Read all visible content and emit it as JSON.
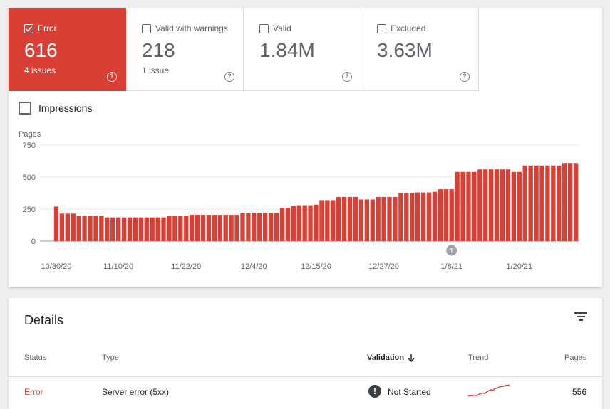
{
  "summary": {
    "tiles": [
      {
        "label": "Error",
        "value": "616",
        "sub": "4 issues",
        "checked": true
      },
      {
        "label": "Valid with warnings",
        "value": "218",
        "sub": "1 issue",
        "checked": false
      },
      {
        "label": "Valid",
        "value": "1.84M",
        "sub": "",
        "checked": false
      },
      {
        "label": "Excluded",
        "value": "3.63M",
        "sub": "",
        "checked": false
      }
    ],
    "help_glyph": "?"
  },
  "impressions": {
    "label": "Impressions",
    "checked": false
  },
  "chart_data": {
    "type": "bar",
    "ylabel": "Pages",
    "ylim": [
      0,
      750
    ],
    "yticks": [
      0,
      250,
      500,
      750
    ],
    "color": "#d93f34",
    "xtick_labels": [
      "10/30/20",
      "11/10/20",
      "11/22/20",
      "12/4/20",
      "12/15/20",
      "12/27/20",
      "1/8/21",
      "1/20/21"
    ],
    "xtick_indices": [
      0,
      11,
      23,
      35,
      46,
      58,
      70,
      82
    ],
    "annotation": {
      "label": "1",
      "index": 70
    },
    "values": [
      270,
      215,
      215,
      215,
      200,
      200,
      200,
      200,
      200,
      185,
      185,
      185,
      185,
      185,
      185,
      185,
      185,
      185,
      185,
      185,
      195,
      195,
      195,
      195,
      205,
      205,
      205,
      205,
      205,
      205,
      205,
      205,
      205,
      220,
      220,
      220,
      220,
      220,
      220,
      220,
      260,
      260,
      275,
      280,
      280,
      280,
      285,
      320,
      320,
      320,
      345,
      345,
      345,
      345,
      325,
      325,
      325,
      345,
      345,
      345,
      345,
      375,
      375,
      375,
      380,
      380,
      380,
      385,
      405,
      405,
      405,
      540,
      540,
      540,
      540,
      560,
      560,
      560,
      560,
      560,
      560,
      540,
      540,
      590,
      590,
      590,
      590,
      590,
      590,
      590,
      610,
      610,
      610
    ]
  },
  "details": {
    "title": "Details",
    "columns": {
      "status": "Status",
      "type": "Type",
      "validation": "Validation",
      "trend": "Trend",
      "pages": "Pages"
    },
    "rows": [
      {
        "status": "Error",
        "type": "Server error (5xx)",
        "validation": "Not Started",
        "pages": "556",
        "trend": [
          10,
          11,
          11,
          12,
          11,
          13,
          15,
          16,
          15,
          18,
          20,
          22,
          21,
          24,
          25,
          27,
          28,
          28,
          30,
          30,
          31
        ]
      }
    ],
    "validation_icon_glyph": "!",
    "accent": "#d93f34"
  }
}
